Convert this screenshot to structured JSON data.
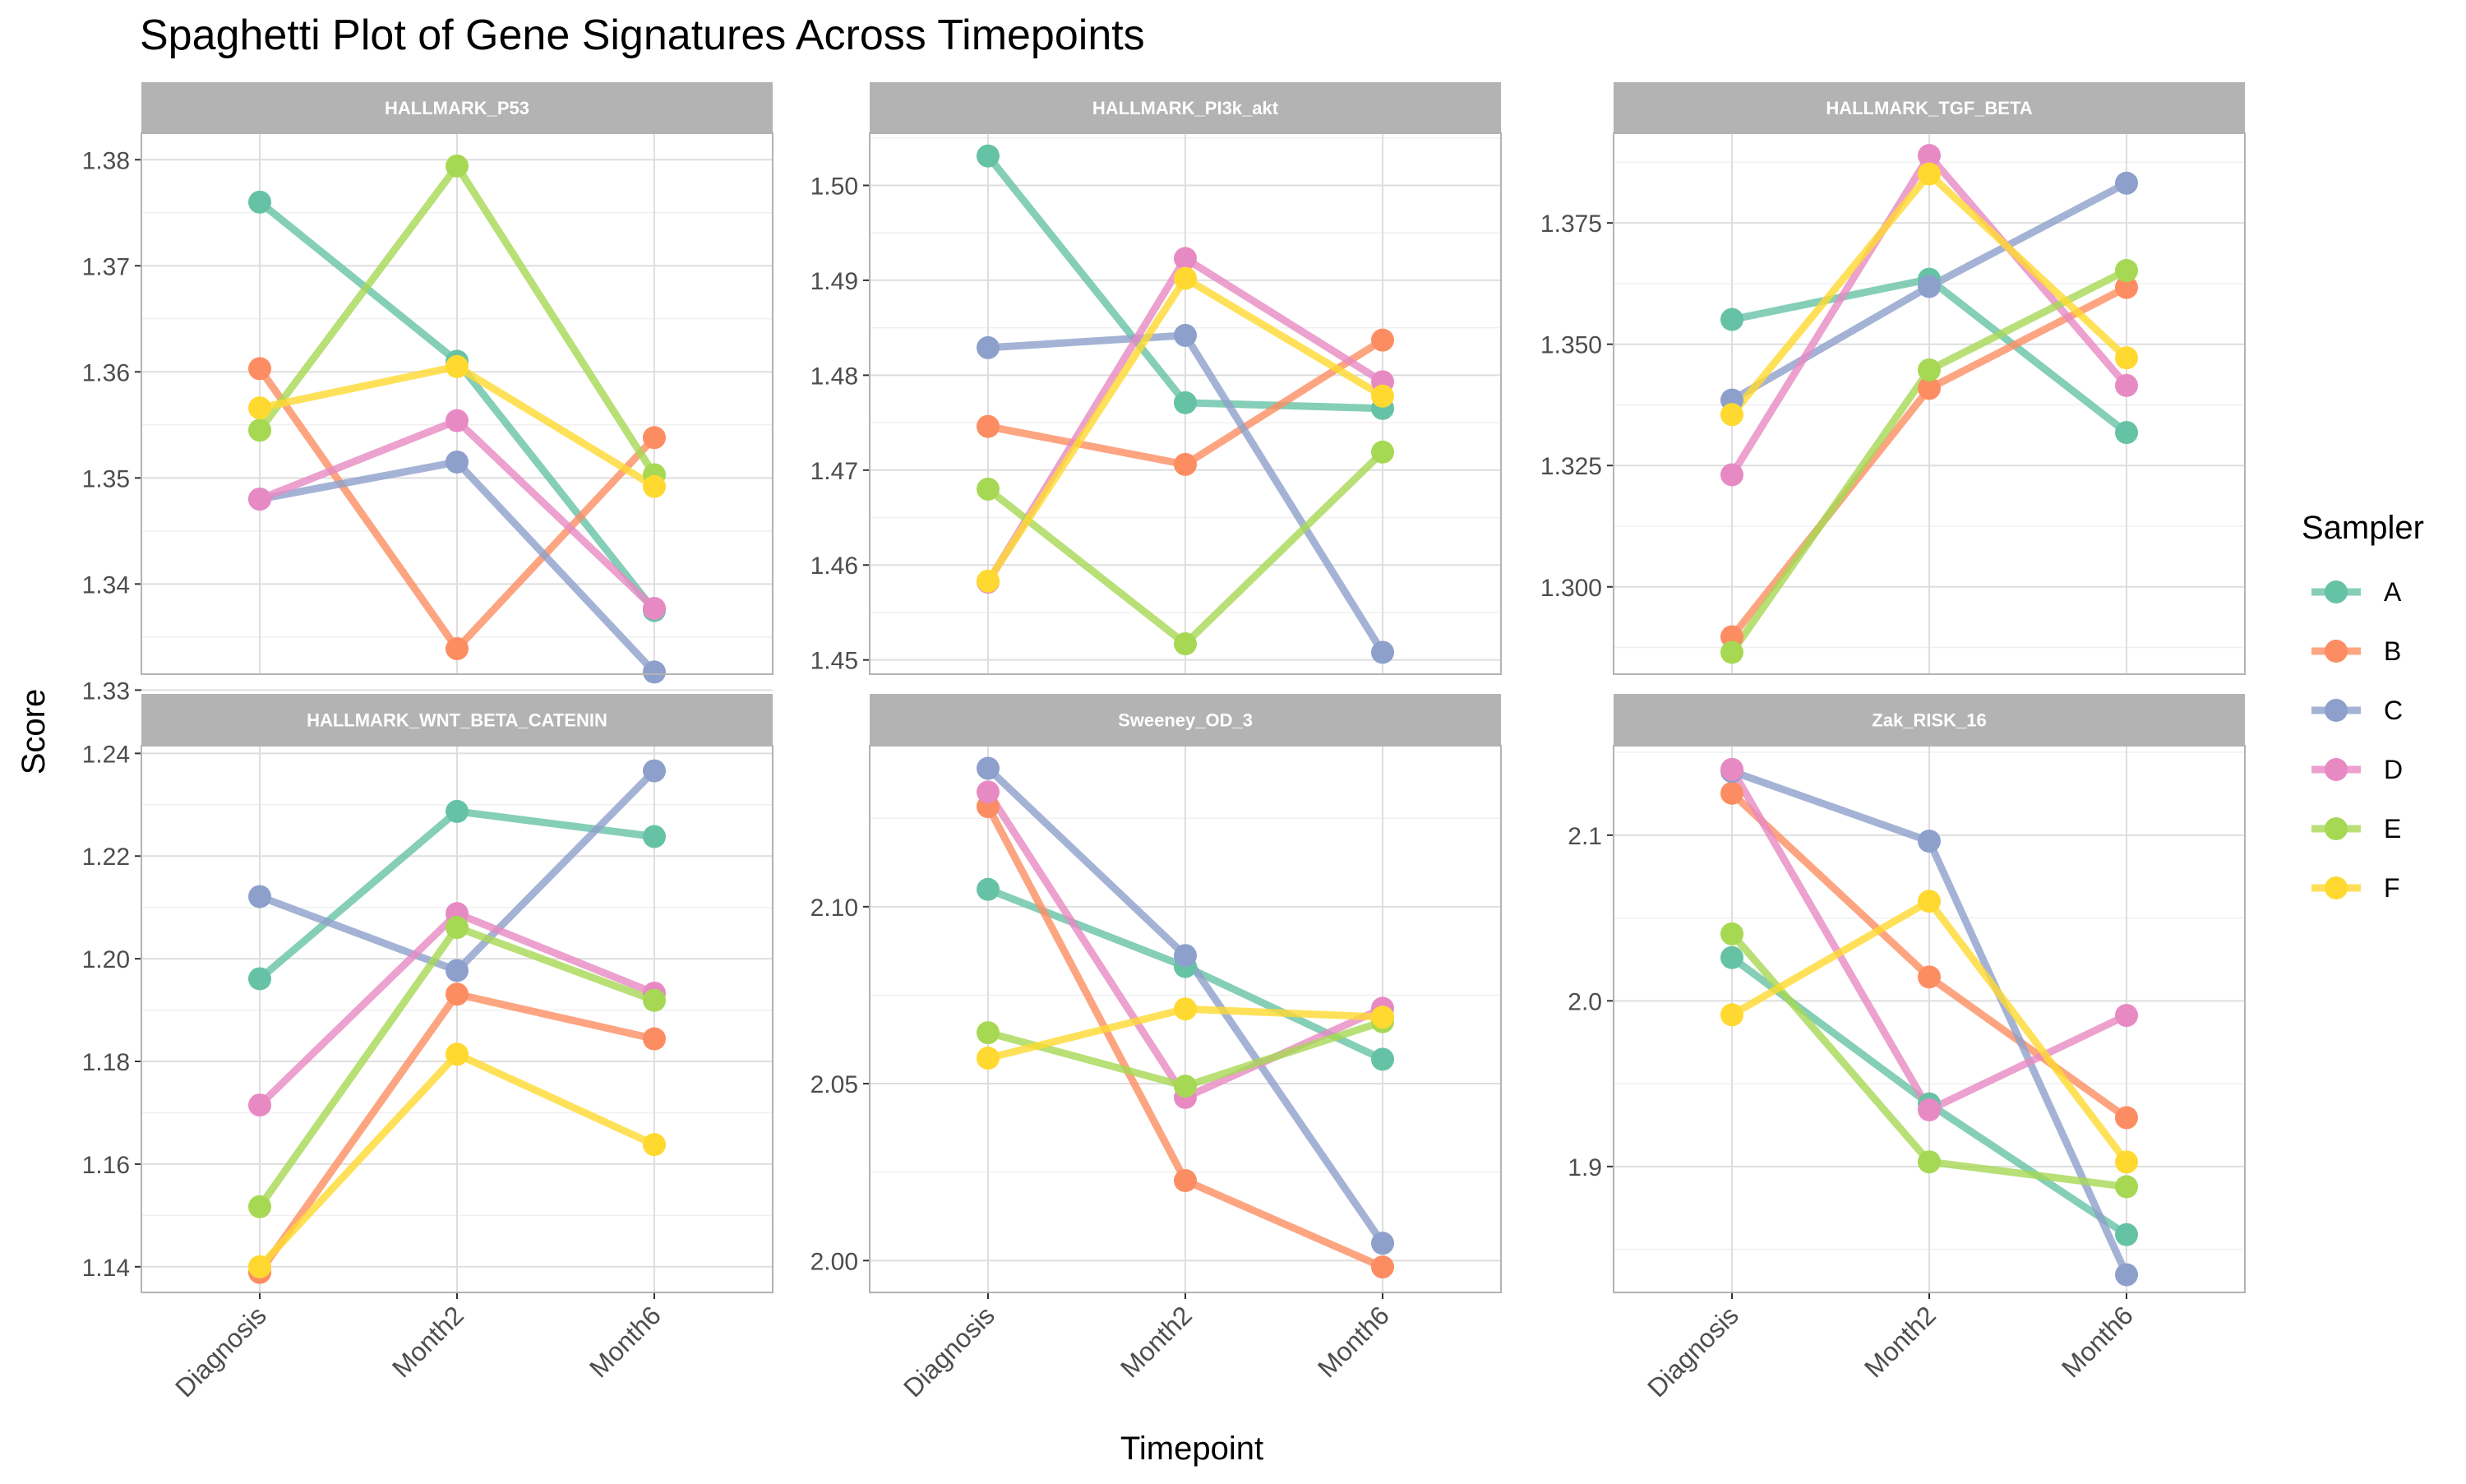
{
  "title": "Spaghetti Plot of Gene Signatures Across Timepoints",
  "xlabel": "Timepoint",
  "ylabel": "Score",
  "legend": {
    "title": "Sampler",
    "placement": "right",
    "entries": [
      {
        "name": "A",
        "color": "#66C2A5"
      },
      {
        "name": "B",
        "color": "#FC8D62"
      },
      {
        "name": "C",
        "color": "#8DA0CB"
      },
      {
        "name": "D",
        "color": "#E78AC3"
      },
      {
        "name": "E",
        "color": "#A6D854"
      },
      {
        "name": "F",
        "color": "#FFD92F"
      }
    ]
  },
  "chart_data": [
    {
      "type": "line",
      "facet": "HALLMARK_P53",
      "categories": [
        "Diagnosis",
        "Month2",
        "Month6"
      ],
      "ylim": [
        1.3315,
        1.3825
      ],
      "yticks": [
        "1.33",
        "1.34",
        "1.35",
        "1.36",
        "1.37",
        "1.38"
      ],
      "yticks_values": [
        1.33,
        1.34,
        1.35,
        1.36,
        1.37,
        1.38
      ],
      "grid": true,
      "series": [
        {
          "name": "A",
          "values": [
            1.376,
            1.361,
            1.3375
          ]
        },
        {
          "name": "B",
          "values": [
            1.3603,
            1.3339,
            1.3538
          ]
        },
        {
          "name": "C",
          "values": [
            1.348,
            1.3515,
            1.3317
          ]
        },
        {
          "name": "D",
          "values": [
            1.348,
            1.3554,
            1.3377
          ]
        },
        {
          "name": "E",
          "values": [
            1.3545,
            1.3794,
            1.3503
          ]
        },
        {
          "name": "F",
          "values": [
            1.3566,
            1.3605,
            1.3492
          ]
        }
      ]
    },
    {
      "type": "line",
      "facet": "HALLMARK_PI3k_akt",
      "categories": [
        "Diagnosis",
        "Month2",
        "Month6"
      ],
      "ylim": [
        1.4485,
        1.5055
      ],
      "yticks": [
        "1.45",
        "1.46",
        "1.47",
        "1.48",
        "1.49",
        "1.50"
      ],
      "yticks_values": [
        1.45,
        1.46,
        1.47,
        1.48,
        1.49,
        1.5
      ],
      "grid": true,
      "series": [
        {
          "name": "A",
          "values": [
            1.5031,
            1.4771,
            1.4765
          ]
        },
        {
          "name": "B",
          "values": [
            1.4746,
            1.4706,
            1.4837
          ]
        },
        {
          "name": "C",
          "values": [
            1.4829,
            1.4842,
            1.4508
          ]
        },
        {
          "name": "D",
          "values": [
            1.4582,
            1.4923,
            1.4793
          ]
        },
        {
          "name": "E",
          "values": [
            1.468,
            1.4517,
            1.4719
          ]
        },
        {
          "name": "F",
          "values": [
            1.4583,
            1.4902,
            1.4778
          ]
        }
      ]
    },
    {
      "type": "line",
      "facet": "HALLMARK_TGF_BETA",
      "categories": [
        "Diagnosis",
        "Month2",
        "Month6"
      ],
      "ylim": [
        1.282,
        1.3935
      ],
      "yticks": [
        "1.300",
        "1.325",
        "1.350",
        "1.375"
      ],
      "yticks_values": [
        1.3,
        1.325,
        1.35,
        1.375
      ],
      "grid": true,
      "series": [
        {
          "name": "A",
          "values": [
            1.3551,
            1.3634,
            1.3318
          ]
        },
        {
          "name": "B",
          "values": [
            1.2897,
            1.3409,
            1.3617
          ]
        },
        {
          "name": "C",
          "values": [
            1.3385,
            1.3619,
            1.3832
          ]
        },
        {
          "name": "D",
          "values": [
            1.3231,
            1.3889,
            1.3415
          ]
        },
        {
          "name": "E",
          "values": [
            1.2865,
            1.3447,
            1.3652
          ]
        },
        {
          "name": "F",
          "values": [
            1.3355,
            1.3851,
            1.3472
          ]
        }
      ]
    },
    {
      "type": "line",
      "facet": "HALLMARK_WNT_BETA_CATENIN",
      "categories": [
        "Diagnosis",
        "Month2",
        "Month6"
      ],
      "ylim": [
        1.135,
        1.2415
      ],
      "yticks": [
        "1.14",
        "1.16",
        "1.18",
        "1.20",
        "1.22",
        "1.24"
      ],
      "yticks_values": [
        1.14,
        1.16,
        1.18,
        1.2,
        1.22,
        1.24
      ],
      "grid": true,
      "series": [
        {
          "name": "A",
          "values": [
            1.1961,
            1.2287,
            1.2238
          ]
        },
        {
          "name": "B",
          "values": [
            1.1389,
            1.1931,
            1.1844
          ]
        },
        {
          "name": "C",
          "values": [
            1.2121,
            1.1977,
            1.2366
          ]
        },
        {
          "name": "D",
          "values": [
            1.1715,
            1.2088,
            1.1933
          ]
        },
        {
          "name": "E",
          "values": [
            1.1517,
            1.2061,
            1.1919
          ]
        },
        {
          "name": "F",
          "values": [
            1.14,
            1.1814,
            1.1638
          ]
        }
      ]
    },
    {
      "type": "line",
      "facet": "Sweeney_OD_3",
      "categories": [
        "Diagnosis",
        "Month2",
        "Month6"
      ],
      "ylim": [
        1.991,
        2.1455
      ],
      "yticks": [
        "2.00",
        "2.05",
        "2.10"
      ],
      "yticks_values": [
        2.0,
        2.05,
        2.1
      ],
      "grid": true,
      "series": [
        {
          "name": "A",
          "values": [
            2.1049,
            2.0831,
            2.0569
          ]
        },
        {
          "name": "B",
          "values": [
            2.1283,
            2.0226,
            1.9982
          ]
        },
        {
          "name": "C",
          "values": [
            2.1391,
            2.0862,
            2.0049
          ]
        },
        {
          "name": "D",
          "values": [
            2.1324,
            2.0461,
            2.0713
          ]
        },
        {
          "name": "E",
          "values": [
            2.0644,
            2.0493,
            2.0675
          ]
        },
        {
          "name": "F",
          "values": [
            2.0572,
            2.0711,
            2.0688
          ]
        }
      ]
    },
    {
      "type": "line",
      "facet": "Zak_RISK_16",
      "categories": [
        "Diagnosis",
        "Month2",
        "Month6"
      ],
      "ylim": [
        1.824,
        2.154
      ],
      "yticks": [
        "1.9",
        "2.0",
        "2.1"
      ],
      "yticks_values": [
        1.9,
        2.0,
        2.1
      ],
      "grid": true,
      "series": [
        {
          "name": "A",
          "values": [
            2.0261,
            1.9378,
            1.8589
          ]
        },
        {
          "name": "B",
          "values": [
            2.1253,
            2.0144,
            1.9295
          ]
        },
        {
          "name": "C",
          "values": [
            2.1385,
            2.0964,
            1.8347
          ]
        },
        {
          "name": "D",
          "values": [
            2.1397,
            1.9342,
            1.9912
          ]
        },
        {
          "name": "E",
          "values": [
            2.0404,
            1.9028,
            1.8878
          ]
        },
        {
          "name": "F",
          "values": [
            1.9916,
            2.0601,
            1.9027
          ]
        }
      ]
    }
  ]
}
